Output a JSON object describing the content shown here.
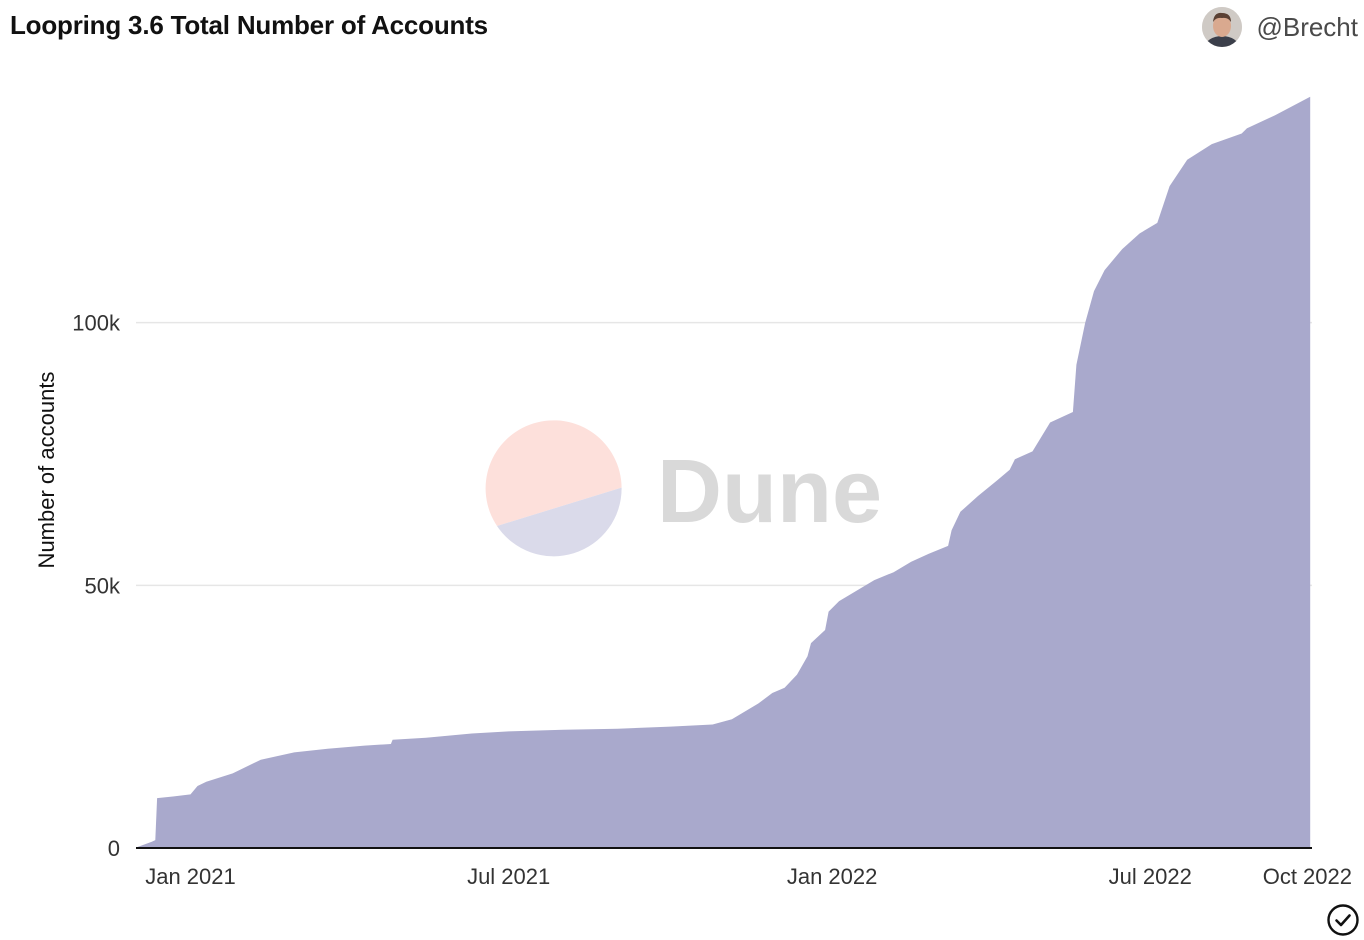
{
  "header": {
    "title": "Loopring 3.6 Total Number of Accounts",
    "author": "@Brecht"
  },
  "watermark": {
    "text": "Dune"
  },
  "colors": {
    "area_fill": "#a9a9cc",
    "gridline": "#e6e6e6",
    "axis_line": "#111111",
    "tick_text": "#333333",
    "watermark_top": "#fde0db",
    "watermark_bottom": "#dadaea",
    "watermark_text": "#d9d9d9"
  },
  "chart_data": {
    "type": "area",
    "title": "Loopring 3.6 Total Number of Accounts",
    "xlabel": "",
    "ylabel": "Number of accounts",
    "ylim": [
      0,
      145000
    ],
    "xlim": [
      "2020-12-01",
      "2022-10-01"
    ],
    "grid": true,
    "legend": "none",
    "y_ticks": [
      {
        "value": 0,
        "label": "0"
      },
      {
        "value": 50000,
        "label": "50k"
      },
      {
        "value": 100000,
        "label": "100k"
      }
    ],
    "x_ticks": [
      {
        "date": "2021-01-01",
        "label": "Jan 2021"
      },
      {
        "date": "2021-07-01",
        "label": "Jul 2021"
      },
      {
        "date": "2022-01-01",
        "label": "Jan 2022"
      },
      {
        "date": "2022-07-01",
        "label": "Jul 2022"
      },
      {
        "date": "2022-10-01",
        "label": "Oct 2022"
      }
    ],
    "series": [
      {
        "x": [
          "2020-12-02",
          "2020-12-10",
          "2020-12-12",
          "2020-12-13",
          "2020-12-22",
          "2021-01-01",
          "2021-01-05",
          "2021-01-10",
          "2021-01-25",
          "2021-02-10",
          "2021-03-01",
          "2021-03-20",
          "2021-04-10",
          "2021-04-25",
          "2021-04-26",
          "2021-05-15",
          "2021-06-10",
          "2021-07-01",
          "2021-08-01",
          "2021-09-01",
          "2021-10-01",
          "2021-10-25",
          "2021-11-05",
          "2021-11-20",
          "2021-11-28",
          "2021-12-05",
          "2021-12-12",
          "2021-12-18",
          "2021-12-20",
          "2021-12-28",
          "2021-12-30",
          "2022-01-05",
          "2022-01-15",
          "2022-01-25",
          "2022-02-05",
          "2022-02-15",
          "2022-02-25",
          "2022-03-08",
          "2022-03-10",
          "2022-03-15",
          "2022-03-25",
          "2022-04-05",
          "2022-04-12",
          "2022-04-15",
          "2022-04-25",
          "2022-05-05",
          "2022-05-18",
          "2022-05-20",
          "2022-05-25",
          "2022-05-30",
          "2022-06-05",
          "2022-06-15",
          "2022-06-25",
          "2022-07-05",
          "2022-07-12",
          "2022-07-16",
          "2022-07-22",
          "2022-08-05",
          "2022-08-22",
          "2022-08-25",
          "2022-09-10",
          "2022-09-30"
        ],
        "values": [
          200,
          1200,
          1500,
          9500,
          9800,
          10200,
          11800,
          12600,
          14200,
          16800,
          18200,
          18900,
          19500,
          19800,
          20600,
          21000,
          21800,
          22200,
          22500,
          22700,
          23100,
          23500,
          24500,
          27500,
          29500,
          30500,
          33000,
          36500,
          39000,
          41500,
          45000,
          47000,
          49000,
          51000,
          52500,
          54500,
          56000,
          57500,
          60500,
          64000,
          67000,
          70000,
          72000,
          74000,
          75500,
          81000,
          83000,
          92000,
          100000,
          106000,
          110000,
          114000,
          117000,
          119000,
          126000,
          128000,
          131000,
          134000,
          136000,
          137000,
          139500,
          143000
        ]
      }
    ]
  }
}
